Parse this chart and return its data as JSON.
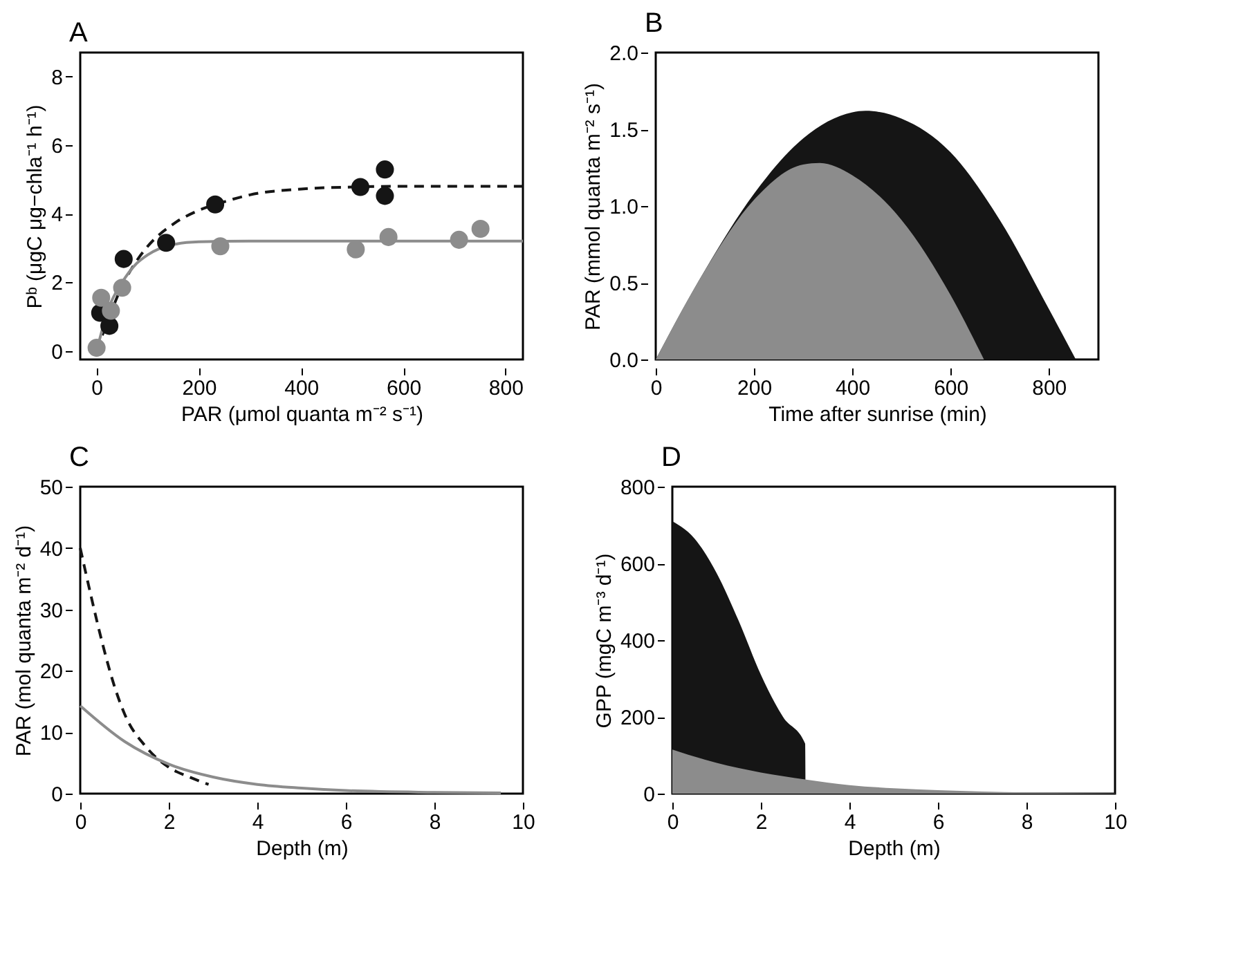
{
  "chart_data": [
    {
      "type": "scatter",
      "title": "A",
      "xlabel": "PAR  (μmol quanta m⁻² s⁻¹)",
      "ylabel": "Pᵇ  (μgC μg−chla⁻¹ h⁻¹)",
      "xlim": [
        -32,
        834
      ],
      "ylim": [
        -0.25,
        8.7
      ],
      "xticks": [
        0,
        200,
        400,
        600,
        800
      ],
      "yticks": [
        0,
        2,
        4,
        6,
        8
      ],
      "grid": false,
      "series": [
        {
          "type": "line",
          "color": "#151515",
          "line_style": "dashed",
          "x": [
            0,
            25,
            50,
            75,
            100,
            150,
            200,
            250,
            300,
            400,
            500,
            600,
            834
          ],
          "values": [
            0,
            1.0,
            1.9,
            2.55,
            3.05,
            3.7,
            4.1,
            4.35,
            4.55,
            4.72,
            4.78,
            4.8,
            4.8
          ]
        },
        {
          "type": "line",
          "color": "#8c8c8c",
          "line_style": "solid",
          "x": [
            0,
            25,
            50,
            75,
            100,
            150,
            200,
            300,
            834
          ],
          "values": [
            0,
            1.3,
            2.0,
            2.5,
            2.8,
            3.1,
            3.18,
            3.2,
            3.2
          ]
        },
        {
          "type": "scatter",
          "color": "#151515",
          "marker": "circle",
          "x": [
            7,
            25,
            53,
            136,
            232,
            516,
            564,
            564
          ],
          "values": [
            1.11,
            0.73,
            2.68,
            3.15,
            4.27,
            4.78,
            5.29,
            4.52
          ]
        },
        {
          "type": "scatter",
          "color": "#8c8c8c",
          "marker": "circle",
          "x": [
            0,
            9,
            28,
            50,
            242,
            507,
            571,
            709,
            751
          ],
          "values": [
            0.09,
            1.55,
            1.17,
            1.84,
            3.05,
            2.96,
            3.32,
            3.24,
            3.56
          ]
        }
      ]
    },
    {
      "type": "area",
      "title": "B",
      "xlabel": "Time after sunrise (min)",
      "ylabel": "PAR  (mmol quanta m⁻² s⁻¹)",
      "xlim": [
        0,
        901
      ],
      "ylim": [
        0,
        2
      ],
      "xticks": [
        0,
        200,
        400,
        600,
        800
      ],
      "yticks": [
        {
          "value": 0,
          "label": "0.0"
        },
        0.5,
        {
          "value": 1,
          "label": "1.0"
        },
        1.5,
        {
          "value": 2,
          "label": "2.0"
        }
      ],
      "grid": false,
      "series": [
        {
          "color": "#151515",
          "x": [
            0,
            100,
            200,
            300,
            400,
            427,
            500,
            600,
            700,
            800,
            855
          ],
          "values": [
            0,
            0.58,
            1.08,
            1.44,
            1.61,
            1.62,
            1.57,
            1.35,
            0.91,
            0.33,
            0
          ]
        },
        {
          "color": "#8c8c8c",
          "x": [
            0,
            100,
            200,
            300,
            334,
            400,
            500,
            600,
            668
          ],
          "values": [
            0,
            0.58,
            1.04,
            1.27,
            1.28,
            1.2,
            0.91,
            0.42,
            0
          ]
        }
      ]
    },
    {
      "type": "line",
      "title": "C",
      "xlabel": "Depth (m)",
      "ylabel": "PAR  (mol quanta m⁻² d⁻¹)",
      "xlim": [
        0,
        10
      ],
      "ylim": [
        0,
        50
      ],
      "xticks": [
        0,
        2,
        4,
        6,
        8,
        10
      ],
      "yticks": [
        0,
        10,
        20,
        30,
        40,
        50
      ],
      "grid": false,
      "series": [
        {
          "color": "#151515",
          "line_style": "dashed",
          "x": [
            0,
            0.25,
            0.5,
            0.75,
            1,
            1.5,
            2,
            2.5,
            2.9
          ],
          "values": [
            40,
            32,
            24.5,
            18,
            13,
            7.5,
            4.3,
            2.6,
            1.5
          ]
        },
        {
          "color": "#8c8c8c",
          "line_style": "solid",
          "x": [
            0,
            1,
            2,
            3,
            4,
            5,
            6,
            8,
            9.5
          ],
          "values": [
            14.3,
            8.5,
            4.8,
            2.7,
            1.5,
            0.9,
            0.5,
            0.2,
            0.1
          ]
        }
      ]
    },
    {
      "type": "area",
      "title": "D",
      "xlabel": "Depth (m)",
      "ylabel": "GPP  (mgC m⁻³ d⁻¹)",
      "xlim": [
        0,
        10
      ],
      "ylim": [
        0,
        800
      ],
      "xticks": [
        0,
        2,
        4,
        6,
        8,
        10
      ],
      "yticks": [
        0,
        200,
        400,
        600,
        800
      ],
      "grid": false,
      "series": [
        {
          "color": "#151515",
          "x": [
            0,
            0.5,
            1,
            1.5,
            2,
            2.5,
            3,
            3.01
          ],
          "values": [
            710,
            665,
            575,
            450,
            310,
            200,
            130,
            0
          ]
        },
        {
          "color": "#8c8c8c",
          "x": [
            0,
            1,
            2,
            3,
            4,
            5,
            6,
            8,
            10
          ],
          "values": [
            115,
            80,
            55,
            37,
            22,
            14,
            9,
            3,
            1
          ]
        }
      ]
    }
  ]
}
